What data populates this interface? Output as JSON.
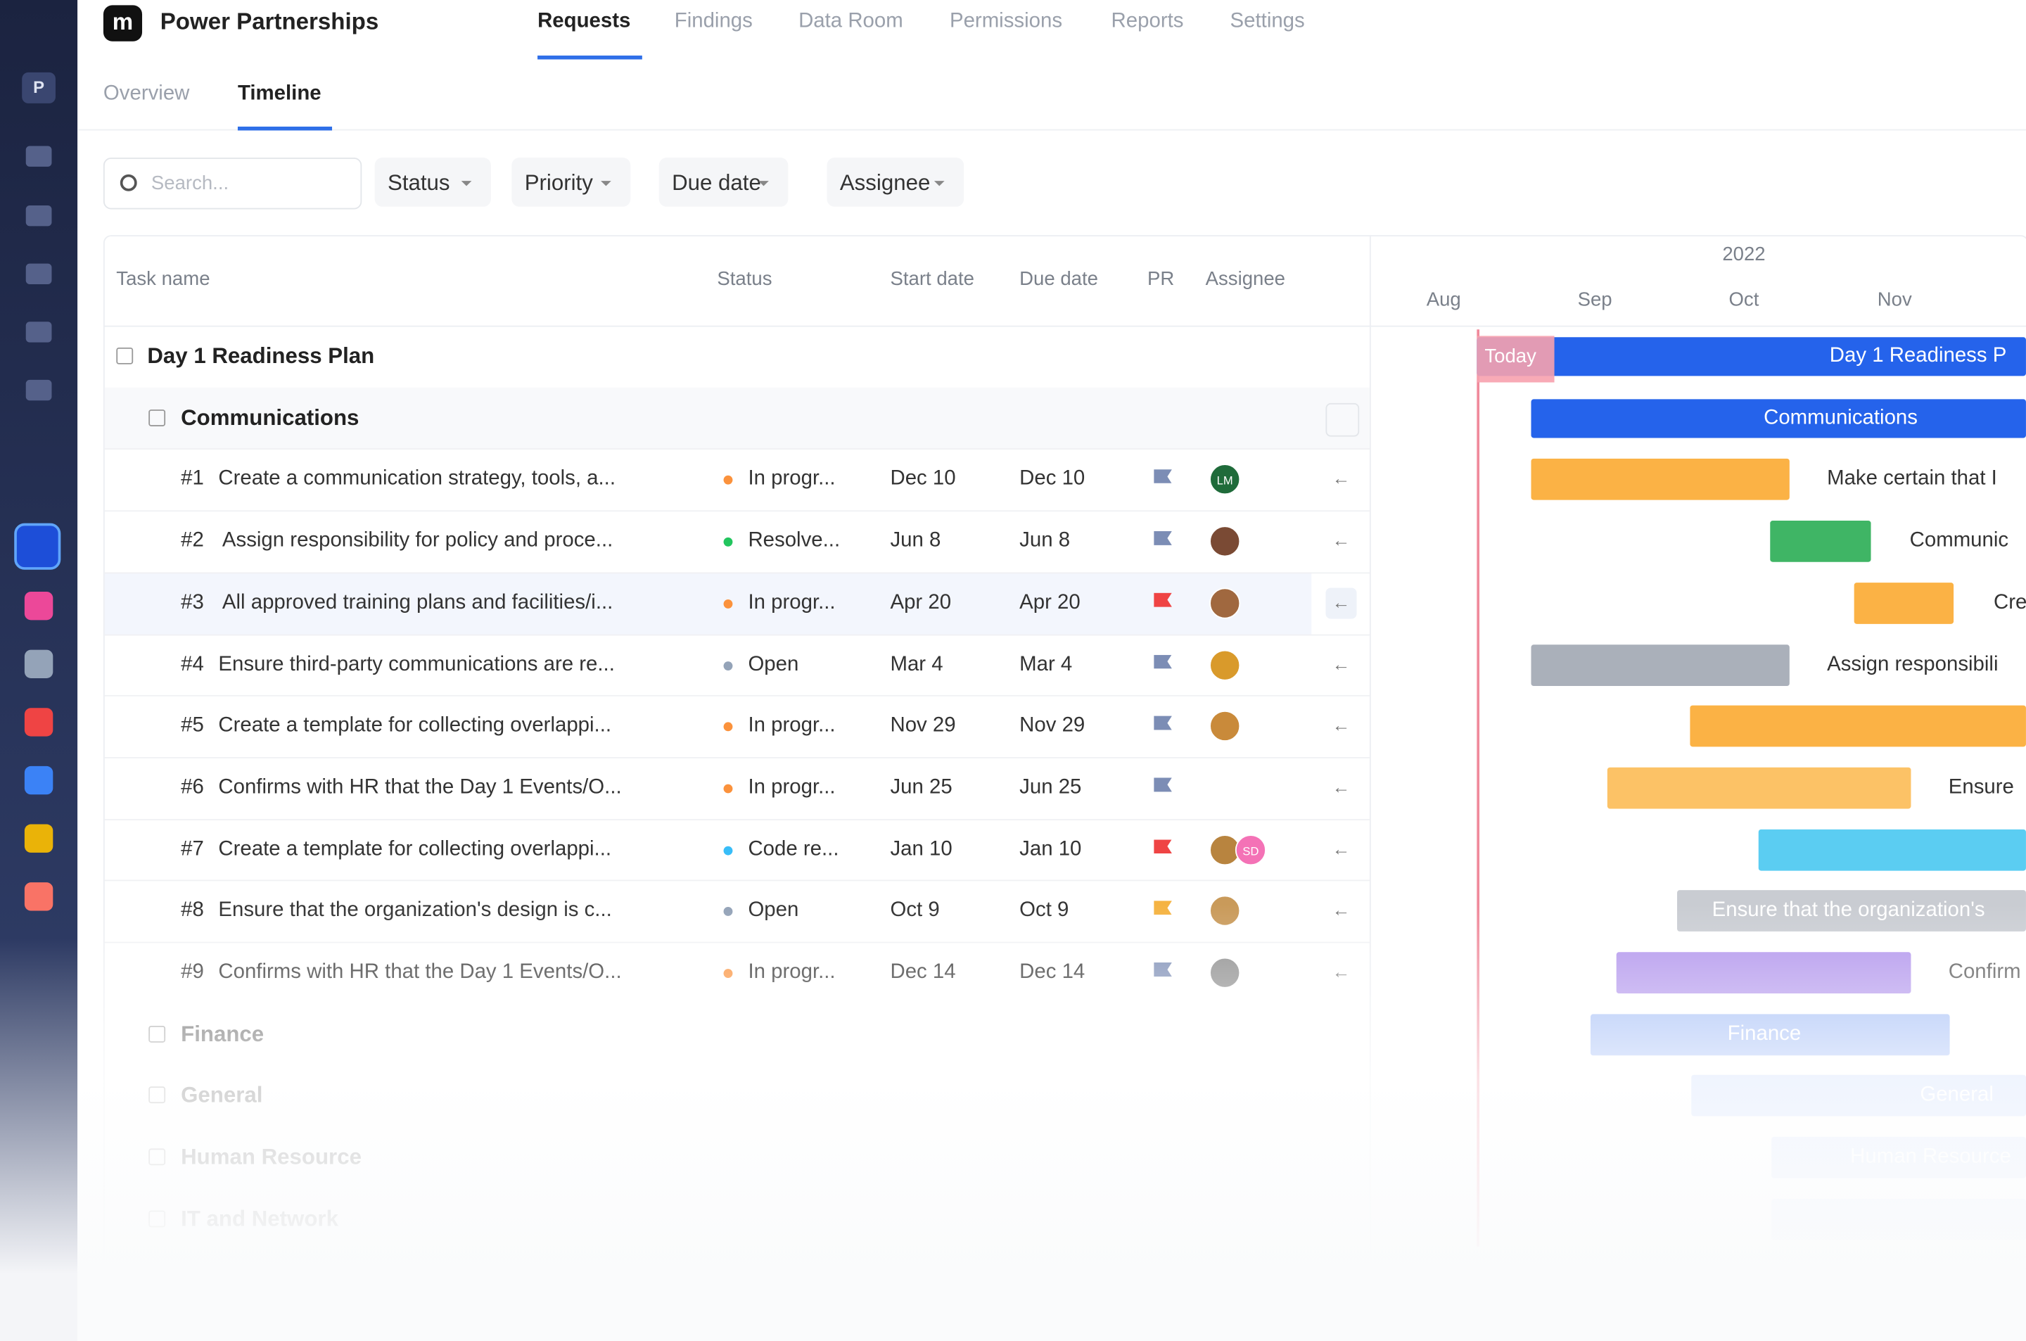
{
  "app": {
    "logo": "m",
    "workspace": "Power Partnerships",
    "sidebar_avatar": "P"
  },
  "nav": [
    "Requests",
    "Findings",
    "Data Room",
    "Permissions",
    "Reports",
    "Settings"
  ],
  "subtabs": [
    "Overview",
    "Timeline"
  ],
  "search_placeholder": "Search...",
  "filters": [
    "Status",
    "Priority",
    "Due date",
    "Assignee"
  ],
  "table": {
    "columns": [
      "Task name",
      "Status",
      "Start date",
      "Due date",
      "PR",
      "Assignee"
    ],
    "plan": "Day 1 Readiness Plan",
    "group": "Communications",
    "rows": [
      {
        "id": "#1",
        "task": "Create a communication strategy, tools, a...",
        "status": "In progr...",
        "status_color": "#fb923c",
        "start": "Dec 10",
        "due": "Dec 10",
        "flag_color": "#7c8db5",
        "avatars": [
          {
            "initials": "LM",
            "color": "#1f6b3a"
          }
        ]
      },
      {
        "id": "#2",
        "task": "Assign responsibility for policy and proce...",
        "status": "Resolve...",
        "status_color": "#22c55e",
        "start": "Jun 8",
        "due": "Jun 8",
        "flag_color": "#7c8db5",
        "avatars": [
          {
            "color": "#7a4a34"
          }
        ]
      },
      {
        "id": "#3",
        "task": "All approved training plans and facilities/i...",
        "status": "In progr...",
        "status_color": "#fb923c",
        "start": "Apr 20",
        "due": "Apr 20",
        "flag_color": "#ef4444",
        "avatars": [
          {
            "color": "#a0683f"
          }
        ]
      },
      {
        "id": "#4",
        "task": "Ensure third-party communications are re...",
        "status": "Open",
        "status_color": "#94a3b8",
        "start": "Mar 4",
        "due": "Mar 4",
        "flag_color": "#7c8db5",
        "avatars": [
          {
            "color": "#d99a2b"
          }
        ]
      },
      {
        "id": "#5",
        "task": "Create a template for collecting overlappi...",
        "status": "In progr...",
        "status_color": "#fb923c",
        "start": "Nov 29",
        "due": "Nov 29",
        "flag_color": "#7c8db5",
        "avatars": [
          {
            "color": "#c98a3a"
          }
        ]
      },
      {
        "id": "#6",
        "task": "Confirms with HR that the Day 1 Events/O...",
        "status": "In progr...",
        "status_color": "#fb923c",
        "start": "Jun 25",
        "due": "Jun 25",
        "flag_color": "#7c8db5",
        "avatars": []
      },
      {
        "id": "#7",
        "task": "Create a template for collecting overlappi...",
        "status": "Code re...",
        "status_color": "#38bdf8",
        "start": "Jan 10",
        "due": "Jan 10",
        "flag_color": "#ef4444",
        "avatars": [
          {
            "color": "#b8843f"
          },
          {
            "initials": "SD",
            "color": "#f472b6"
          }
        ]
      },
      {
        "id": "#8",
        "task": "Ensure that the organization's design is c...",
        "status": "Open",
        "status_color": "#94a3b8",
        "start": "Oct 9",
        "due": "Oct 9",
        "flag_color": "#f5b342",
        "avatars": [
          {
            "color": "#c99a5a"
          }
        ]
      },
      {
        "id": "#9",
        "task": "Confirms with HR that the Day 1 Events/O...",
        "status": "In progr...",
        "status_color": "#fb923c",
        "start": "Dec 14",
        "due": "Dec 14",
        "flag_color": "#7c8db5",
        "avatars": [
          {
            "color": "#8c8c8c"
          }
        ]
      }
    ],
    "other_groups": [
      "Finance",
      "General",
      "Human Resource",
      "IT and Network"
    ]
  },
  "gantt": {
    "year": "2022",
    "months": [
      "Aug",
      "Sep",
      "Oct",
      "Nov"
    ],
    "today": "Today",
    "bar_labels": [
      "Day 1 Readiness P",
      "Communications",
      "Make certain that I",
      "Communic",
      "Cre",
      "Assign responsibili",
      "Ensure",
      "Ensure that the organization's",
      "Confirm",
      "Finance",
      "General",
      "Human Resource"
    ]
  }
}
